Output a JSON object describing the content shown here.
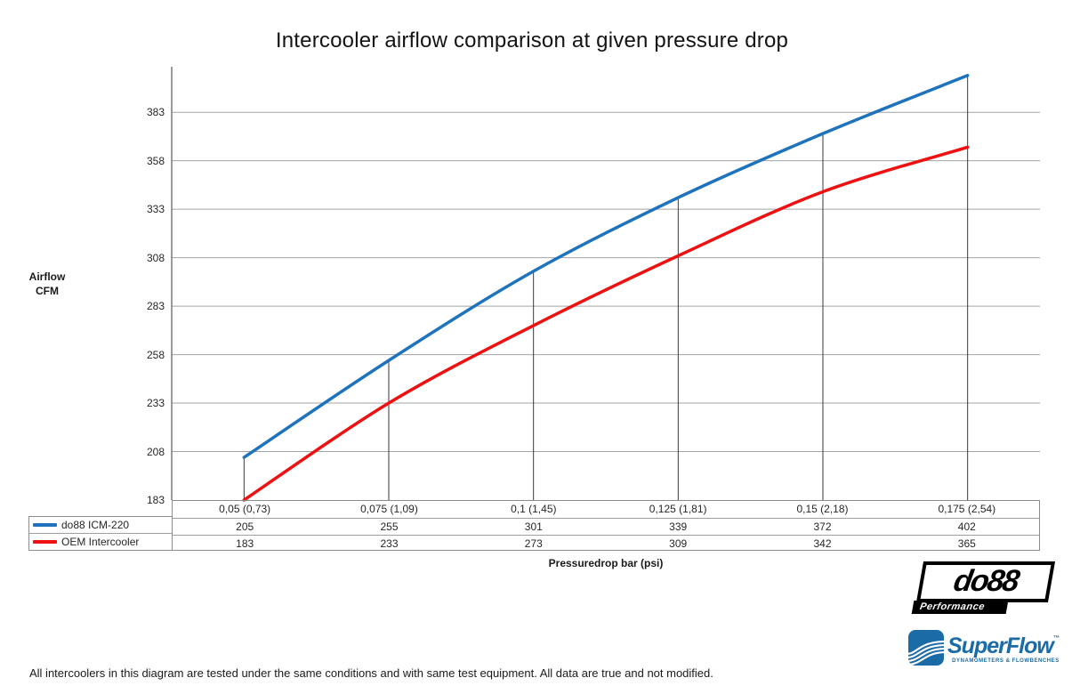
{
  "chart_data": {
    "type": "line",
    "title": "Intercooler airflow comparison at given pressure drop",
    "xlabel": "Pressuredrop bar (psi)",
    "ylabel_line1": "Airflow",
    "ylabel_line2": "CFM",
    "categories": [
      "0,05 (0,73)",
      "0,075 (1,09)",
      "0,1 (1,45)",
      "0,125 (1,81)",
      "0,15 (2,18)",
      "0,175 (2,54)"
    ],
    "series": [
      {
        "name": "do88 ICM-220",
        "color": "#1f73bd",
        "values": [
          205,
          255,
          301,
          339,
          372,
          402
        ]
      },
      {
        "name": "OEM Intercooler",
        "color": "#ee1111",
        "values": [
          183,
          233,
          273,
          309,
          342,
          365
        ]
      }
    ],
    "y_ticks": [
      183,
      208,
      233,
      258,
      283,
      308,
      333,
      358,
      383
    ],
    "ylim": [
      183,
      406.5
    ],
    "grid": "horizontal",
    "legend_position": "table-left",
    "annotations": "vertical drop lines at each category from x-axis up to do88 ICM-220 curve",
    "data_table_shown": true
  },
  "footnote": "All intercoolers in this diagram are tested under the same conditions and with same test equipment. All data are true and not modified.",
  "logos": {
    "do88": {
      "line1": "do88",
      "line2": "Performance"
    },
    "superflow": {
      "name": "SuperFlow",
      "tm": "™",
      "tagline": "DYNAMOMETERS & FLOWBENCHES"
    }
  },
  "colors": {
    "series_do88": "#1f73bd",
    "series_oem": "#ee1111",
    "gridline": "#a3a3a3",
    "axis": "#595959",
    "drop_line": "#3a3a3a",
    "superflow_blue": "#1a6ba6"
  }
}
